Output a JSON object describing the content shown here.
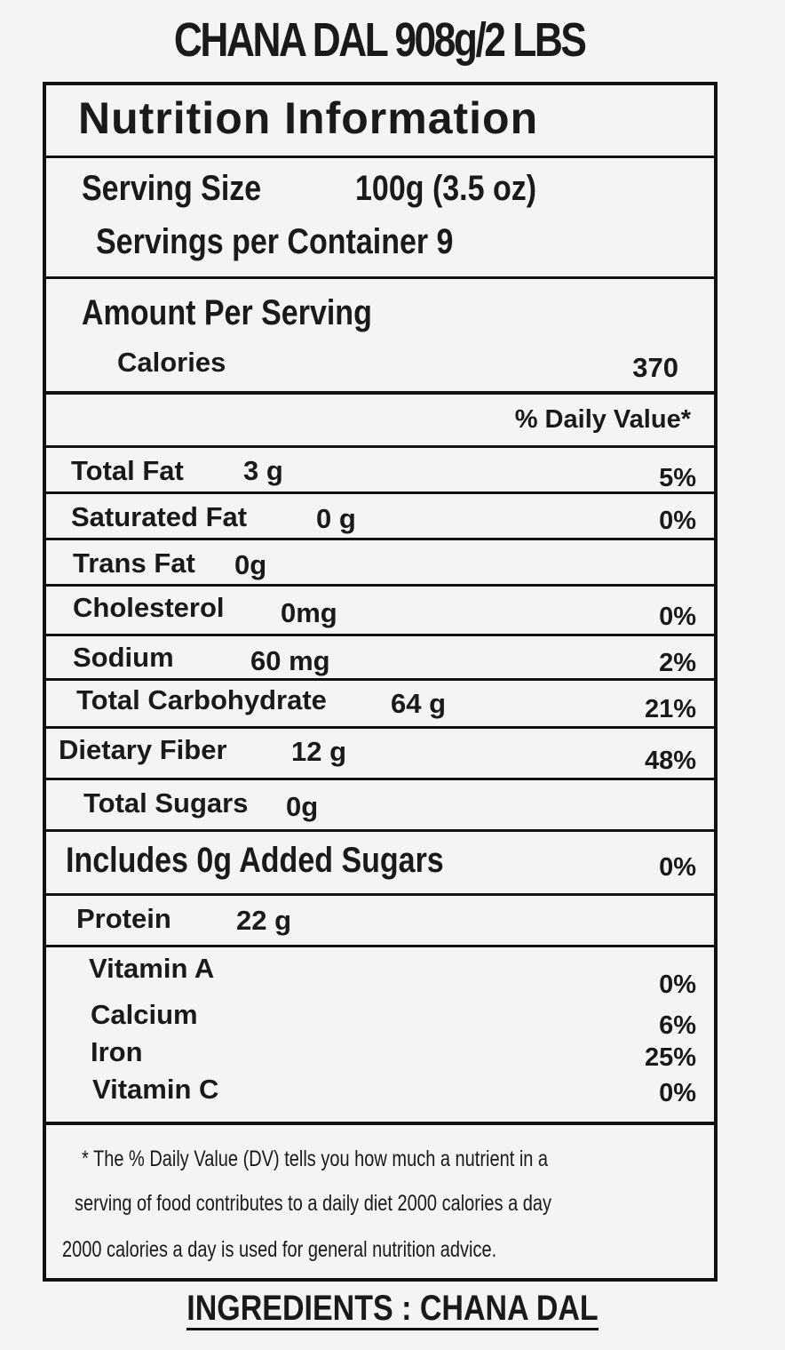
{
  "product_title": "CHANA DAL  908g/2 LBS",
  "panel": {
    "heading": "Nutrition Information",
    "serving_size_label": "Serving Size",
    "serving_size_value": "100g (3.5 oz)",
    "servings_per_container": "Servings per Container 9",
    "amount_per_serving": "Amount Per Serving",
    "calories_label": "Calories",
    "calories_value": "370",
    "daily_value_header": "% Daily Value*",
    "nutrients": [
      {
        "label": "Total Fat",
        "amount": "3 g",
        "dv": "5%"
      },
      {
        "label": "Saturated Fat",
        "amount": "0 g",
        "dv": "0%"
      },
      {
        "label": "Trans Fat",
        "amount": "0g",
        "dv": ""
      },
      {
        "label": "Cholesterol",
        "amount": "0mg",
        "dv": "0%"
      },
      {
        "label": "Sodium",
        "amount": "60 mg",
        "dv": "2%"
      },
      {
        "label": "Total Carbohydrate",
        "amount": "64 g",
        "dv": "21%"
      },
      {
        "label": "Dietary Fiber",
        "amount": "12 g",
        "dv": "48%"
      },
      {
        "label": "Total Sugars",
        "amount": "0g",
        "dv": ""
      },
      {
        "label": "Includes 0g Added Sugars",
        "amount": "",
        "dv": "0%"
      },
      {
        "label": "Protein",
        "amount": "22 g",
        "dv": ""
      }
    ],
    "vitamins": [
      {
        "label": "Vitamin A",
        "dv": "0%"
      },
      {
        "label": "Calcium",
        "dv": "6%"
      },
      {
        "label": "Iron",
        "dv": "25%"
      },
      {
        "label": "Vitamin C",
        "dv": "0%"
      }
    ],
    "footnote_lines": [
      "* The % Daily Value (DV) tells you how much a nutrient in a",
      "serving of food contributes to a daily diet 2000 calories a day",
      "2000 calories a day is used for general nutrition advice."
    ]
  },
  "ingredients": "INGREDIENTS : CHANA DAL"
}
